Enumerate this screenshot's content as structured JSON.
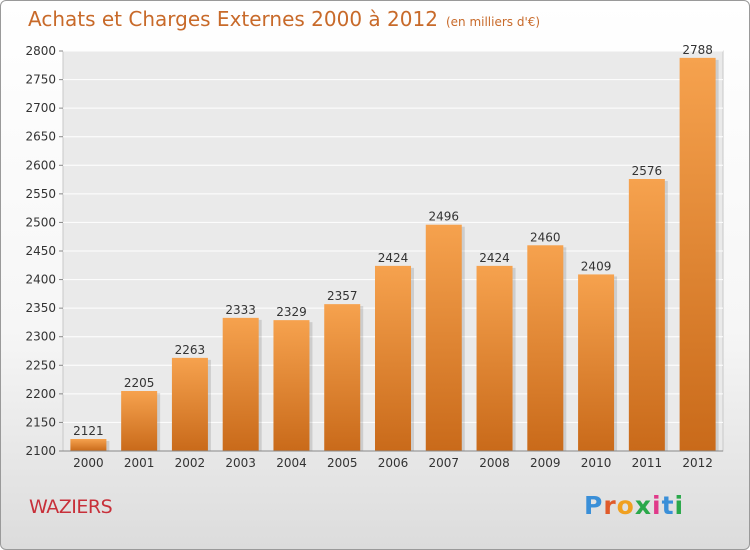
{
  "header": {
    "title": "Achats et Charges Externes 2000 à 2012",
    "subtitle": "(en milliers d'€)"
  },
  "location": "WAZIERS",
  "logo": {
    "text": "Proxiti",
    "colors": [
      "#3a8fd8",
      "#e05a2a",
      "#f0a020",
      "#2aa84a",
      "#e03a8a",
      "#3a8fd8",
      "#2aa84a"
    ]
  },
  "colors": {
    "bar_top": "#f6a24e",
    "bar_bottom": "#c96a1a",
    "title": "#c86a2a",
    "place": "#c8303a"
  },
  "chart_data": {
    "type": "bar",
    "categories": [
      "2000",
      "2001",
      "2002",
      "2003",
      "2004",
      "2005",
      "2006",
      "2007",
      "2008",
      "2009",
      "2010",
      "2011",
      "2012"
    ],
    "values": [
      2121,
      2205,
      2263,
      2333,
      2329,
      2357,
      2424,
      2496,
      2424,
      2460,
      2409,
      2576,
      2788
    ],
    "title": "Achats et Charges Externes 2000 à 2012",
    "subtitle": "(en milliers d'€)",
    "ylim": [
      2100,
      2800
    ],
    "yticks": [
      2100,
      2150,
      2200,
      2250,
      2300,
      2350,
      2400,
      2450,
      2500,
      2550,
      2600,
      2650,
      2700,
      2750,
      2800
    ],
    "grid": true
  }
}
